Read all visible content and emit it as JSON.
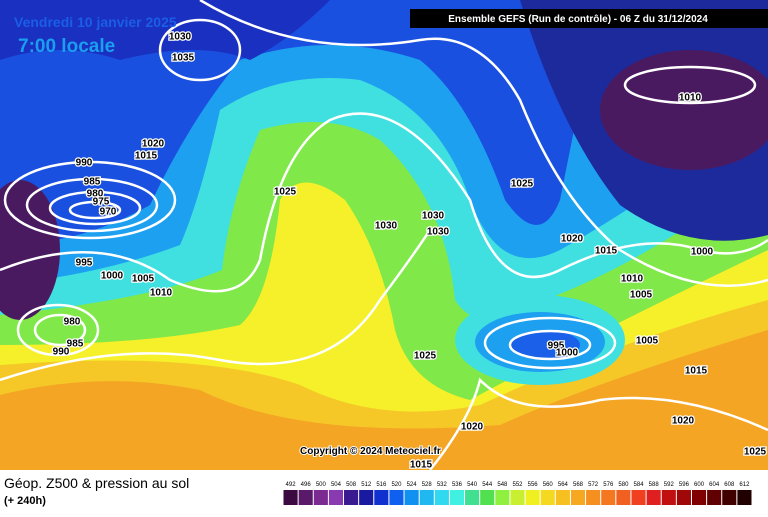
{
  "header": {
    "date": "Vendredi 10 janvier 2025",
    "time": "7:00 locale",
    "run": "Ensemble GEFS  (Run de contrôle)  -  06 Z du 31/12/2024"
  },
  "isobar_labels": [
    "1030",
    "1035",
    "1020",
    "1015",
    "990",
    "985",
    "980",
    "975",
    "970",
    "1025",
    "1030",
    "1030",
    "1030",
    "1025",
    "1020",
    "1015",
    "1010",
    "1000",
    "1010",
    "1005",
    "1005",
    "995",
    "1000",
    "1005",
    "1010",
    "980",
    "985",
    "990",
    "995",
    "1000",
    "1025",
    "1015",
    "1020",
    "1020",
    "1015",
    "1025"
  ],
  "copyright": "Copyright © 2024 Meteociel.fr",
  "footer": {
    "title": "Géop. Z500 & pression au sol",
    "range": "(+ 240h)"
  },
  "legend": {
    "labels": [
      "492",
      "496",
      "500",
      "504",
      "508",
      "512",
      "516",
      "520",
      "524",
      "528",
      "532",
      "536",
      "540",
      "544",
      "548",
      "552",
      "556",
      "560",
      "564",
      "568",
      "572",
      "576",
      "580",
      "584",
      "588",
      "592",
      "596",
      "600",
      "604",
      "608",
      "612"
    ],
    "colors": [
      "#3a0a40",
      "#5a1a6a",
      "#7a2a90",
      "#8a3ab0",
      "#3a1a90",
      "#1a1aa0",
      "#1030d0",
      "#1060f0",
      "#1090f0",
      "#20b8f0",
      "#30d8f0",
      "#40f0e0",
      "#40e090",
      "#50e050",
      "#90f040",
      "#c8f030",
      "#f0f020",
      "#f5d820",
      "#f5c020",
      "#f5a820",
      "#f59020",
      "#f57820",
      "#f06020",
      "#f04020",
      "#e02020",
      "#c01010",
      "#a00808",
      "#800000",
      "#600000",
      "#400000",
      "#200000"
    ]
  }
}
